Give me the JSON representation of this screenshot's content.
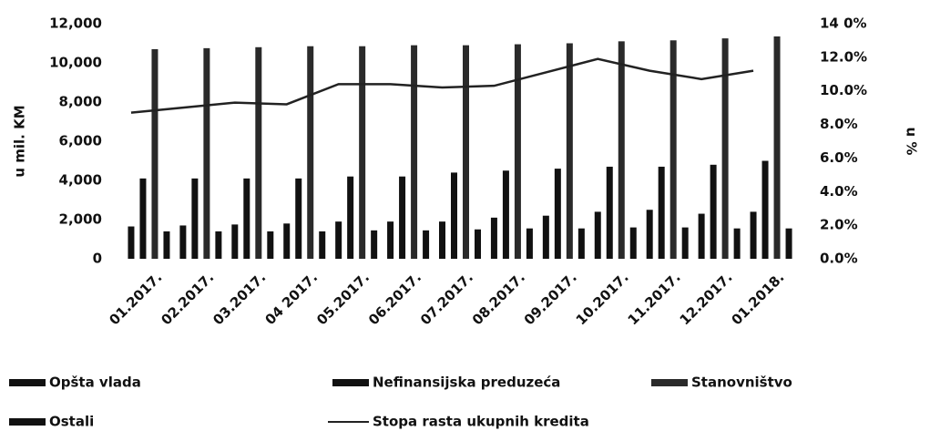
{
  "chart_data": {
    "type": "bar_line",
    "categories": [
      "01.2017.",
      "02.2017.",
      "03.2017.",
      "04 2017.",
      "05.2017.",
      "06.2017.",
      "07.2017.",
      "08.2017.",
      "09.2017.",
      "10.2017.",
      "11.2017.",
      "12.2017.",
      "01.2018."
    ],
    "series": [
      {
        "name": "Opšta vlada",
        "color": "#111111",
        "values": [
          1650,
          1700,
          1750,
          1800,
          1900,
          1900,
          1900,
          2100,
          2200,
          2400,
          2500,
          2300,
          2400
        ]
      },
      {
        "name": "Nefinansijska preduzeća",
        "color": "#111111",
        "values": [
          4100,
          4100,
          4100,
          4100,
          4200,
          4200,
          4400,
          4500,
          4600,
          4700,
          4700,
          4800,
          5000
        ]
      },
      {
        "name": "Stanovništvo",
        "color": "#2a2a2a",
        "values": [
          10700,
          10750,
          10800,
          10850,
          10850,
          10900,
          10900,
          10950,
          11000,
          11100,
          11150,
          11250,
          11350
        ]
      },
      {
        "name": "Ostali",
        "color": "#111111",
        "values": [
          1400,
          1400,
          1400,
          1400,
          1450,
          1450,
          1500,
          1550,
          1550,
          1600,
          1600,
          1550,
          1550
        ]
      },
      {
        "name": "Stopa rasta ukupnih kredita",
        "color": "#222222",
        "axis": "y2",
        "values": [
          8.7,
          9.0,
          9.3,
          9.2,
          10.4,
          10.4,
          10.2,
          10.3,
          11.1,
          11.9,
          11.2,
          10.7,
          11.2
        ]
      }
    ],
    "ylabel": "u mil. KM",
    "y2label": "u %",
    "ylim": [
      0,
      12000
    ],
    "yticks": [
      0,
      {
        "value": 2000,
        "label": "2,000"
      },
      {
        "value": 4000,
        "label": "4,000"
      },
      {
        "value": 6000,
        "label": "6,000"
      },
      {
        "value": 8000,
        "label": "8,000"
      },
      {
        "value": 10000,
        "label": "10,000"
      },
      {
        "value": 12000,
        "label": "12,000"
      }
    ],
    "y2lim": [
      0,
      14
    ],
    "y2ticks": [
      {
        "value": 0,
        "label": "0.0%"
      },
      {
        "value": 2,
        "label": "2.0%"
      },
      {
        "value": 4,
        "label": "4.0%"
      },
      {
        "value": 6,
        "label": "6.0%"
      },
      {
        "value": 8,
        "label": "8.0%"
      },
      {
        "value": 10,
        "label": "10.0%"
      },
      {
        "value": 12,
        "label": "12.0%"
      },
      {
        "value": 14,
        "label": "14 0%"
      }
    ]
  }
}
